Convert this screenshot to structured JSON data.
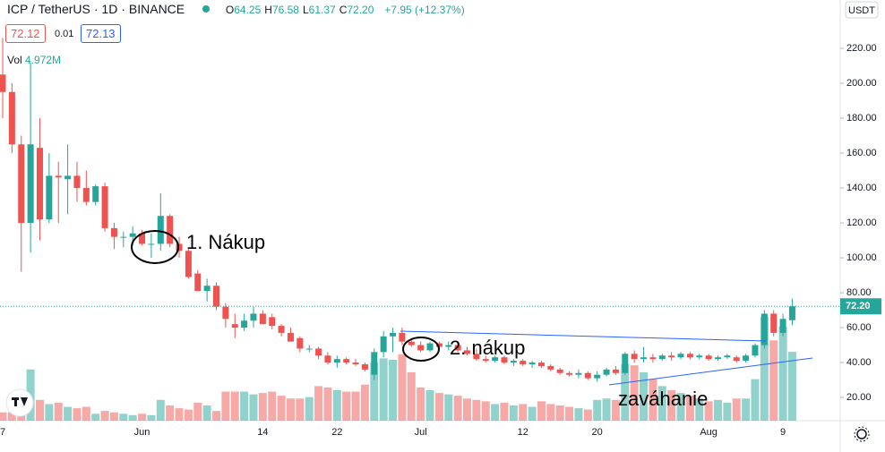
{
  "header": {
    "symbol": "ICP / TetherUS",
    "interval": "1D",
    "exchange": "BINANCE",
    "ohlc": [
      {
        "key": "O",
        "value": "64.25"
      },
      {
        "key": "H",
        "value": "76.58"
      },
      {
        "key": "L",
        "value": "61.37"
      },
      {
        "key": "C",
        "value": "72.20"
      }
    ],
    "change": "+7.95 (+12.37%)",
    "sell": "72.12",
    "spread": "0.01",
    "buy": "72.13",
    "volume_title": "Vol",
    "volume_label": "4.972M",
    "currency": "USDT"
  },
  "chart_data": {
    "type": "candlestick",
    "categories": [
      "7",
      null,
      null,
      null,
      null,
      null,
      null,
      null,
      null,
      null,
      null,
      null,
      null,
      null,
      null,
      "Jun",
      null,
      null,
      null,
      null,
      null,
      null,
      null,
      null,
      null,
      null,
      null,
      null,
      "14",
      null,
      null,
      null,
      null,
      null,
      null,
      null,
      "22",
      null,
      null,
      null,
      null,
      null,
      null,
      null,
      null,
      "Jul",
      null,
      null,
      null,
      null,
      null,
      null,
      null,
      null,
      null,
      null,
      "12",
      null,
      null,
      null,
      null,
      null,
      null,
      null,
      "20",
      null,
      null,
      null,
      null,
      null,
      null,
      null,
      null,
      null,
      null,
      null,
      "Aug",
      null,
      null,
      null,
      null,
      null,
      null,
      null,
      "9",
      null
    ],
    "open": [
      205,
      195,
      165,
      120,
      163,
      122,
      147,
      145,
      147,
      140,
      132,
      141,
      117,
      112,
      112,
      114,
      108,
      108,
      124,
      108,
      104,
      91,
      81,
      84,
      72,
      62,
      60,
      64,
      68,
      66,
      61,
      57,
      54,
      48,
      48,
      44,
      40,
      42,
      40,
      39,
      33,
      46,
      55,
      57,
      52,
      50,
      47,
      51,
      49,
      50,
      47,
      45,
      42,
      41,
      43,
      40,
      41,
      39,
      40,
      38,
      36,
      34,
      33,
      34,
      31,
      33,
      36,
      34,
      45,
      42,
      43,
      42,
      44,
      43,
      45,
      43,
      44,
      42,
      43,
      43,
      41,
      44,
      50,
      68,
      57,
      64.25
    ],
    "high": [
      226,
      200,
      170,
      212,
      180,
      160,
      155,
      165,
      155,
      150,
      142,
      143,
      120,
      115,
      118,
      116,
      114,
      137,
      125,
      112,
      106,
      93,
      88,
      86,
      74,
      68,
      68,
      72,
      70,
      68,
      62,
      60,
      55,
      50,
      49,
      46,
      44,
      43,
      42,
      40,
      48,
      58,
      60,
      60,
      54,
      52,
      52,
      52,
      52,
      51,
      49,
      48,
      44,
      44,
      44,
      42,
      42,
      41,
      41,
      39,
      37,
      35,
      36,
      35,
      35,
      37,
      38,
      46,
      47,
      49,
      45,
      45,
      46,
      46,
      46,
      45,
      45,
      44,
      45,
      44,
      45,
      51,
      70,
      70,
      68,
      76.58
    ],
    "low": [
      180,
      160,
      92,
      103,
      110,
      120,
      120,
      125,
      132,
      130,
      130,
      115,
      105,
      106,
      107,
      107,
      100,
      104,
      106,
      100,
      88,
      82,
      75,
      70,
      60,
      54,
      58,
      60,
      62,
      59,
      55,
      53,
      46,
      46,
      42,
      39,
      37,
      39,
      38,
      35,
      30,
      43,
      46,
      50,
      49,
      46,
      46,
      47,
      47,
      46,
      44,
      41,
      40,
      40,
      39,
      38,
      38,
      37,
      37,
      35,
      33,
      32,
      31,
      30,
      29,
      32,
      33,
      33,
      40,
      40,
      40,
      41,
      41,
      42,
      42,
      42,
      41,
      41,
      42,
      40,
      40,
      43,
      48,
      55,
      55,
      61.37
    ],
    "close": [
      195,
      165,
      120,
      165,
      122,
      147,
      146,
      147,
      140,
      132,
      141,
      117,
      112,
      112,
      114,
      108,
      108,
      124,
      108,
      104,
      89,
      81,
      84,
      72,
      65,
      60,
      64,
      68,
      62,
      61,
      57,
      52,
      48,
      48,
      44,
      40,
      42,
      40,
      39,
      36,
      46,
      55,
      57,
      52,
      50,
      47,
      51,
      49,
      50,
      47,
      45,
      42,
      41,
      43,
      40,
      41,
      39,
      40,
      38,
      36,
      34,
      33,
      34,
      31,
      33,
      36,
      34,
      45,
      42,
      43,
      42,
      44,
      43,
      45,
      43,
      44,
      42,
      43,
      44,
      41,
      44,
      50,
      68,
      57,
      65,
      72.2
    ],
    "volume": [
      0.6,
      0.6,
      0.9,
      3.7,
      1.5,
      1.2,
      1.3,
      1.0,
      0.9,
      1.0,
      0.5,
      0.7,
      0.6,
      0.5,
      0.4,
      0.5,
      0.4,
      1.5,
      1.1,
      0.9,
      0.8,
      1.3,
      1.1,
      0.7,
      2.1,
      2.1,
      2.1,
      1.9,
      2.0,
      2.1,
      1.8,
      1.6,
      1.6,
      1.7,
      2.5,
      2.4,
      2.2,
      2.1,
      2.1,
      2.6,
      4.2,
      4.5,
      4.4,
      4.8,
      3.5,
      2.4,
      2.2,
      2.0,
      1.9,
      1.8,
      1.6,
      1.5,
      1.4,
      1.2,
      1.3,
      1.1,
      1.2,
      1.0,
      1.4,
      1.2,
      1.1,
      1.0,
      0.9,
      0.8,
      1.5,
      1.6,
      1.5,
      4.1,
      4.0,
      3.5,
      3.0,
      2.5,
      2.2,
      2.0,
      1.8,
      1.6,
      1.4,
      1.5,
      1.3,
      1.6,
      1.6,
      3.0,
      7.5,
      5.8,
      6.8,
      4.972
    ],
    "up_color": "#26a69a",
    "down_color": "#ef5350",
    "ylim": [
      6.7,
      247.7
    ],
    "yticks": [
      {
        "value": 20,
        "label": "20.00"
      },
      {
        "value": 40,
        "label": "40.00"
      },
      {
        "value": 60,
        "label": "60.00"
      },
      {
        "value": 80,
        "label": "80.00"
      },
      {
        "value": 100,
        "label": "100.00"
      },
      {
        "value": 120,
        "label": "120.00"
      },
      {
        "value": 140,
        "label": "140.00"
      },
      {
        "value": 160,
        "label": "160.00"
      },
      {
        "value": 180,
        "label": "180.00"
      },
      {
        "value": 200,
        "label": "200.00"
      },
      {
        "value": 220,
        "label": "220.00"
      }
    ],
    "last_price": {
      "value": 72.2,
      "label": "72.20"
    },
    "annotations": [
      "1. Nákup",
      "2. nákup",
      "zaváhanie"
    ]
  }
}
